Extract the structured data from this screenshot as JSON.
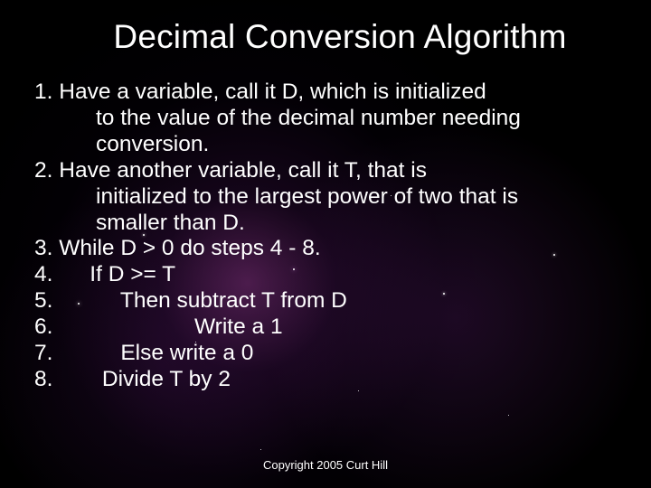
{
  "slide": {
    "title": "Decimal Conversion Algorithm",
    "background_color": "#000000",
    "text_color": "#ffffff",
    "title_fontsize": 37,
    "body_fontsize": 24.5,
    "copyright_fontsize": 13,
    "items": [
      {
        "num": "1.",
        "text_first": "Have a variable, call it D, which is initialized",
        "wrap_lines": [
          "to the value of the decimal number needing",
          "conversion."
        ]
      },
      {
        "num": "2.",
        "text_first": "Have another variable, call it T, that is",
        "wrap_lines": [
          "initialized to the largest power of two that is",
          "smaller than D."
        ]
      },
      {
        "num": "3.",
        "text_first": "While D > 0 do steps 4 - 8.",
        "wrap_lines": []
      },
      {
        "num": "4.",
        "spacer": "      ",
        "text_first": "If D >= T",
        "wrap_lines": []
      },
      {
        "num": "5.",
        "spacer": "           ",
        "text_first": "Then subtract T from D",
        "wrap_lines": []
      },
      {
        "num": "6.",
        "spacer": "                       ",
        "text_first": "Write a 1",
        "wrap_lines": []
      },
      {
        "num": "7.",
        "spacer": "           ",
        "text_first": "Else write a 0",
        "wrap_lines": []
      },
      {
        "num": "8.",
        "spacer": "        ",
        "text_first": "Divide T by 2",
        "wrap_lines": []
      }
    ],
    "copyright": "Copyright 2005 Curt Hill"
  }
}
